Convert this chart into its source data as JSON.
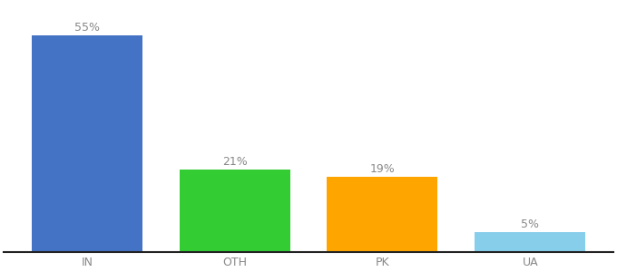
{
  "categories": [
    "IN",
    "OTH",
    "PK",
    "UA"
  ],
  "values": [
    55,
    21,
    19,
    5
  ],
  "labels": [
    "55%",
    "21%",
    "19%",
    "5%"
  ],
  "bar_colors": [
    "#4472C4",
    "#33CC33",
    "#FFA500",
    "#87CEEB"
  ],
  "background_color": "#ffffff",
  "ylim": [
    0,
    63
  ],
  "bar_width": 0.75,
  "label_fontsize": 9,
  "tick_fontsize": 9,
  "label_color": "#888888",
  "tick_color": "#888888",
  "bottom_spine_color": "#222222"
}
